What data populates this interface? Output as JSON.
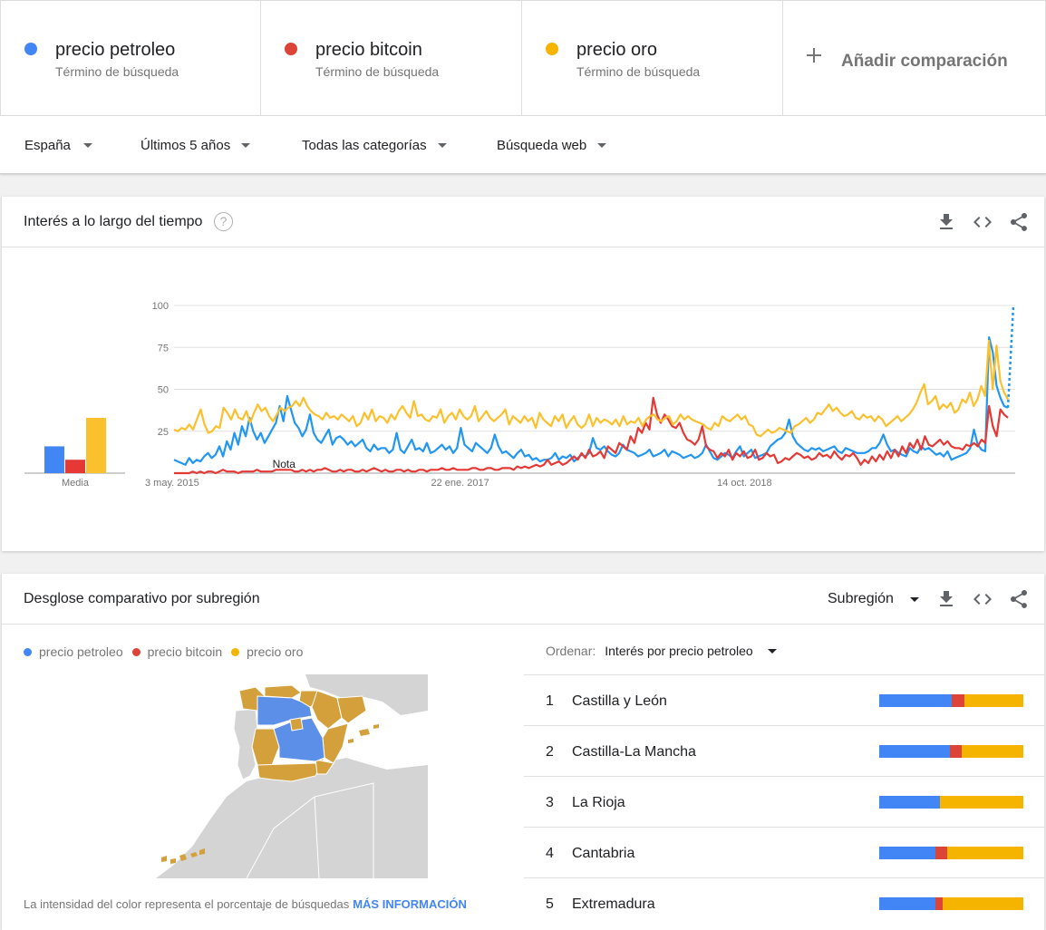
{
  "colors": {
    "blue": "#4285f4",
    "red": "#db4437",
    "yellow": "#f4b400",
    "chart_yellow": "#fbc02d"
  },
  "terms": [
    {
      "name": "precio petroleo",
      "sub": "Término de búsqueda",
      "color": "#4285f4"
    },
    {
      "name": "precio bitcoin",
      "sub": "Término de búsqueda",
      "color": "#db4437"
    },
    {
      "name": "precio oro",
      "sub": "Término de búsqueda",
      "color": "#f4b400"
    }
  ],
  "add_comparison": "Añadir comparación",
  "filters": {
    "region": "España",
    "period": "Últimos 5 años",
    "category": "Todas las categorías",
    "search_type": "Búsqueda web"
  },
  "interest_card": {
    "title": "Interés a lo largo del tiempo",
    "help": "?",
    "average_label": "Media",
    "note_label": "Nota",
    "icons": [
      "download-icon",
      "embed-icon",
      "share-icon"
    ]
  },
  "chart_data": {
    "type": "line",
    "x_ticks": [
      "3 may. 2015",
      "22 ene. 2017",
      "14 oct. 2018"
    ],
    "y_ticks": [
      100,
      75,
      50,
      25
    ],
    "ylim": [
      0,
      100
    ],
    "grid": true,
    "averages": [
      {
        "name": "precio petroleo",
        "value": 16
      },
      {
        "name": "precio bitcoin",
        "value": 8
      },
      {
        "name": "precio oro",
        "value": 33
      }
    ],
    "series": [
      {
        "name": "precio petroleo",
        "color": "#2196f3",
        "values": [
          8,
          7,
          6,
          5,
          9,
          6,
          8,
          7,
          10,
          12,
          9,
          11,
          16,
          10,
          19,
          14,
          24,
          17,
          28,
          22,
          33,
          25,
          20,
          24,
          18,
          22,
          26,
          30,
          40,
          31,
          46,
          38,
          30,
          27,
          22,
          26,
          35,
          24,
          20,
          18,
          22,
          26,
          17,
          21,
          22,
          20,
          17,
          19,
          16,
          18,
          20,
          15,
          13,
          17,
          14,
          15,
          15,
          12,
          14,
          24,
          14,
          12,
          16,
          20,
          14,
          15,
          13,
          18,
          12,
          13,
          15,
          17,
          14,
          16,
          12,
          15,
          27,
          17,
          15,
          13,
          18,
          16,
          14,
          12,
          15,
          23,
          16,
          12,
          13,
          11,
          9,
          12,
          14,
          10,
          11,
          8,
          9,
          7,
          8,
          8,
          9,
          12,
          8,
          10,
          9,
          11,
          7,
          9,
          11,
          10,
          12,
          21,
          15,
          14,
          16,
          13,
          11,
          10,
          12,
          17,
          14,
          13,
          12,
          10,
          11,
          12,
          14,
          10,
          11,
          12,
          14,
          10,
          13,
          12,
          11,
          9,
          10,
          11,
          9,
          10,
          12,
          17,
          13,
          9,
          8,
          10,
          12,
          11,
          9,
          13,
          16,
          10,
          12,
          14,
          9,
          10,
          11,
          12,
          16,
          18,
          20,
          21,
          24,
          32,
          22,
          18,
          16,
          14,
          13,
          15,
          14,
          15,
          13,
          14,
          15,
          16,
          13,
          12,
          15,
          14,
          13,
          12,
          12,
          12,
          13,
          15,
          15,
          18,
          23,
          17,
          13,
          14,
          12,
          11,
          10,
          15,
          13,
          12,
          16,
          14,
          15,
          13,
          11,
          12,
          10,
          13,
          8,
          9,
          10,
          11,
          12,
          15,
          26,
          17,
          14,
          13,
          81,
          72,
          52,
          45,
          40,
          39
        ]
      },
      {
        "name": "precio bitcoin",
        "color": "#e53935",
        "values": [
          0,
          0,
          0,
          0,
          0,
          1,
          0,
          1,
          0,
          1,
          1,
          0,
          1,
          2,
          1,
          1,
          1,
          0,
          1,
          1,
          1,
          1,
          2,
          1,
          1,
          1,
          1,
          2,
          2,
          2,
          2,
          2,
          1,
          1,
          2,
          1,
          2,
          1,
          2,
          2,
          3,
          2,
          1,
          1,
          2,
          1,
          2,
          2,
          1,
          1,
          2,
          1,
          2,
          3,
          2,
          1,
          2,
          1,
          1,
          2,
          2,
          1,
          2,
          1,
          1,
          2,
          2,
          1,
          2,
          2,
          2,
          3,
          2,
          2,
          3,
          2,
          2,
          2,
          2,
          3,
          3,
          2,
          2,
          3,
          3,
          2,
          2,
          3,
          3,
          3,
          2,
          4,
          3,
          4,
          3,
          4,
          5,
          4,
          5,
          8,
          5,
          6,
          7,
          5,
          6,
          8,
          10,
          8,
          12,
          9,
          14,
          10,
          11,
          13,
          9,
          16,
          14,
          12,
          18,
          16,
          14,
          22,
          18,
          27,
          24,
          30,
          26,
          45,
          35,
          30,
          35,
          32,
          28,
          27,
          30,
          24,
          20,
          19,
          17,
          20,
          28,
          16,
          14,
          13,
          9,
          12,
          10,
          14,
          8,
          12,
          10,
          13,
          9,
          10,
          14,
          8,
          9,
          12,
          10,
          11,
          6,
          7,
          9,
          8,
          10,
          12,
          11,
          9,
          10,
          8,
          9,
          12,
          10,
          11,
          9,
          13,
          10,
          8,
          11,
          10,
          12,
          9,
          5,
          8,
          6,
          10,
          7,
          11,
          8,
          13,
          9,
          14,
          10,
          16,
          12,
          18,
          15,
          20,
          14,
          22,
          17,
          16,
          18,
          20,
          17,
          19,
          16,
          15,
          15,
          14,
          17,
          16,
          18,
          16,
          20,
          18,
          40,
          28,
          22,
          38,
          35,
          33
        ]
      },
      {
        "name": "precio oro",
        "color": "#fbc02d",
        "values": [
          26,
          25,
          27,
          26,
          29,
          26,
          32,
          38,
          29,
          24,
          25,
          28,
          27,
          39,
          36,
          32,
          38,
          33,
          32,
          37,
          30,
          36,
          41,
          37,
          39,
          34,
          31,
          35,
          39,
          37,
          39,
          40,
          43,
          40,
          45,
          40,
          37,
          35,
          34,
          32,
          36,
          33,
          34,
          32,
          35,
          33,
          31,
          34,
          28,
          30,
          36,
          32,
          38,
          31,
          34,
          33,
          30,
          35,
          32,
          37,
          40,
          36,
          33,
          43,
          34,
          35,
          32,
          31,
          34,
          33,
          38,
          30,
          34,
          36,
          32,
          38,
          34,
          32,
          34,
          40,
          31,
          34,
          37,
          33,
          31,
          33,
          35,
          38,
          29,
          34,
          32,
          30,
          34,
          31,
          33,
          27,
          36,
          32,
          30,
          28,
          34,
          31,
          35,
          27,
          31,
          34,
          29,
          27,
          29,
          35,
          28,
          33,
          30,
          32,
          31,
          29,
          32,
          28,
          34,
          29,
          31,
          30,
          33,
          28,
          32,
          34,
          35,
          32,
          31,
          33,
          34,
          29,
          31,
          35,
          32,
          34,
          32,
          31,
          30,
          29,
          27,
          26,
          30,
          28,
          34,
          32,
          31,
          33,
          35,
          32,
          34,
          29,
          28,
          23,
          22,
          24,
          26,
          24,
          25,
          27,
          26,
          25,
          24,
          28,
          29,
          31,
          33,
          30,
          32,
          36,
          35,
          38,
          41,
          37,
          39,
          36,
          34,
          35,
          37,
          33,
          32,
          35,
          33,
          34,
          31,
          34,
          32,
          28,
          30,
          32,
          34,
          31,
          33,
          35,
          38,
          42,
          48,
          53,
          41,
          43,
          46,
          38,
          41,
          39,
          42,
          36,
          38,
          44,
          42,
          48,
          40,
          44,
          52,
          46,
          79,
          50,
          76,
          55,
          48,
          44
        ]
      }
    ]
  },
  "region_card": {
    "title": "Desglose comparativo por subregión",
    "selector": "Subregión",
    "legend": [
      "precio petroleo",
      "precio bitcoin",
      "precio oro"
    ],
    "map_note": "La intensidad del color representa el porcentaje de búsquedas",
    "more_info": "MÁS INFORMACIÓN",
    "sort_label": "Ordenar:",
    "sort_value": "Interés por precio petroleo",
    "rows": [
      {
        "rank": "1",
        "name": "Castilla y León",
        "shares": [
          50,
          9,
          41
        ]
      },
      {
        "rank": "2",
        "name": "Castilla-La Mancha",
        "shares": [
          49,
          8,
          43
        ]
      },
      {
        "rank": "3",
        "name": "La Rioja",
        "shares": [
          42,
          0,
          58
        ]
      },
      {
        "rank": "4",
        "name": "Cantabria",
        "shares": [
          39,
          8,
          53
        ]
      },
      {
        "rank": "5",
        "name": "Extremadura",
        "shares": [
          39,
          5,
          56
        ]
      }
    ]
  }
}
